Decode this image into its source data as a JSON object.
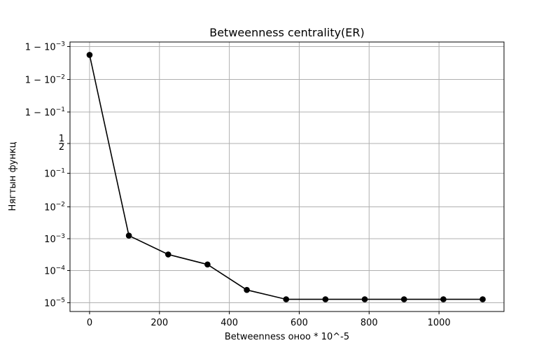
{
  "chart_data": {
    "type": "line",
    "title": "Betweenness centrality(ER)",
    "xlabel": "Betweenness оноо * 10^-5",
    "ylabel": "Нягтын функц",
    "y_scale": "logit",
    "grid": true,
    "line_color": "#000000",
    "marker": "circle",
    "xlim": [
      -56,
      1186
    ],
    "x_ticks": [
      {
        "value": 0,
        "label": "0"
      },
      {
        "value": 200,
        "label": "200"
      },
      {
        "value": 400,
        "label": "400"
      },
      {
        "value": 600,
        "label": "600"
      },
      {
        "value": 800,
        "label": "800"
      },
      {
        "value": 1000,
        "label": "1000"
      }
    ],
    "y_ticks": [
      {
        "value": 1e-05,
        "base": "10",
        "exp": "−5",
        "prefix": ""
      },
      {
        "value": 0.0001,
        "base": "10",
        "exp": "−4",
        "prefix": ""
      },
      {
        "value": 0.001,
        "base": "10",
        "exp": "−3",
        "prefix": ""
      },
      {
        "value": 0.01,
        "base": "10",
        "exp": "−2",
        "prefix": ""
      },
      {
        "value": 0.1,
        "base": "10",
        "exp": "−1",
        "prefix": ""
      },
      {
        "value": 0.5,
        "fraction": [
          "1",
          "2"
        ]
      },
      {
        "value": 0.9,
        "base": "10",
        "exp": "−1",
        "prefix": "1 − "
      },
      {
        "value": 0.99,
        "base": "10",
        "exp": "−2",
        "prefix": "1 − "
      },
      {
        "value": 0.999,
        "base": "10",
        "exp": "−3",
        "prefix": "1 − "
      }
    ],
    "x": [
      0,
      112.5,
      225,
      337.5,
      450,
      562.5,
      675,
      787.5,
      900,
      1012.5,
      1125
    ],
    "y": [
      0.9982,
      0.00125,
      0.00032,
      0.000155,
      2.5e-05,
      1.28e-05,
      1.28e-05,
      1.28e-05,
      1.28e-05,
      1.28e-05,
      1.28e-05
    ]
  }
}
